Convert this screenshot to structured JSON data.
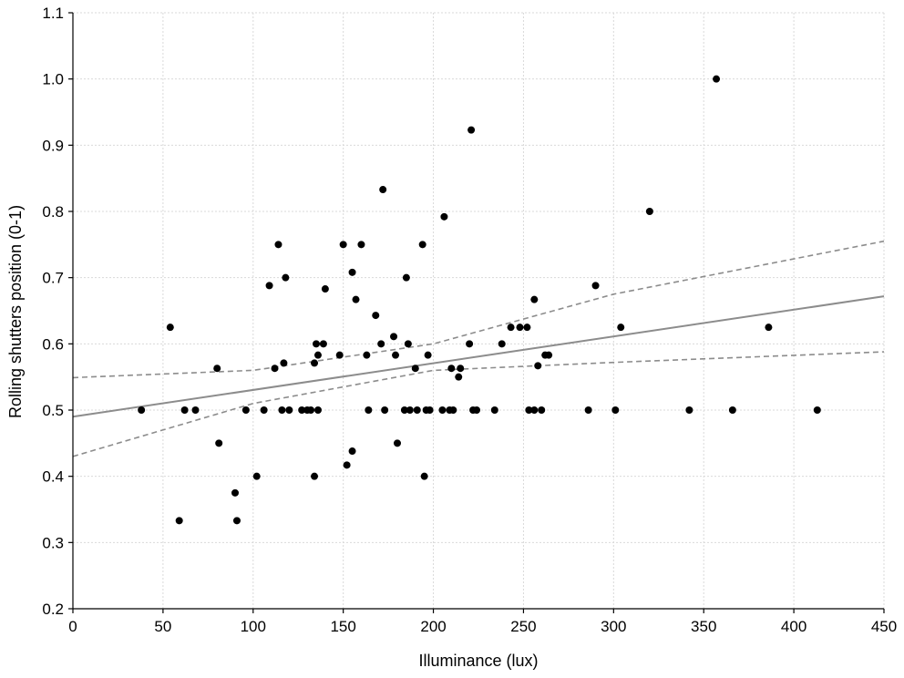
{
  "chart_data": {
    "type": "scatter",
    "title": "",
    "xlabel": "Illuminance (lux)",
    "ylabel": "Rolling shutters position (0-1)",
    "xlim": [
      0,
      450
    ],
    "ylim": [
      0.2,
      1.1
    ],
    "xticks": [
      0,
      50,
      100,
      150,
      200,
      250,
      300,
      350,
      400,
      450
    ],
    "xtick_labels": [
      "0",
      "50",
      "100",
      "150",
      "200",
      "250",
      "300",
      "350",
      "400",
      "450"
    ],
    "yticks": [
      0.2,
      0.3,
      0.4,
      0.5,
      0.6,
      0.7,
      0.8,
      0.9,
      1.0,
      1.1
    ],
    "ytick_labels": [
      "0.2",
      "0.3",
      "0.4",
      "0.5",
      "0.6",
      "0.7",
      "0.8",
      "0.9",
      "1.0",
      "1.1"
    ],
    "grid": true,
    "legend": "none",
    "point_color": "#000000",
    "line_color": "#8c8c8c",
    "points": [
      [
        38,
        0.5
      ],
      [
        54,
        0.625
      ],
      [
        59,
        0.333
      ],
      [
        62,
        0.5
      ],
      [
        68,
        0.5
      ],
      [
        80,
        0.563
      ],
      [
        81,
        0.45
      ],
      [
        90,
        0.375
      ],
      [
        91,
        0.333
      ],
      [
        96,
        0.5
      ],
      [
        102,
        0.4
      ],
      [
        106,
        0.5
      ],
      [
        109,
        0.688
      ],
      [
        112,
        0.563
      ],
      [
        114,
        0.75
      ],
      [
        116,
        0.5
      ],
      [
        117,
        0.571
      ],
      [
        118,
        0.7
      ],
      [
        120,
        0.5
      ],
      [
        127,
        0.5
      ],
      [
        130,
        0.5
      ],
      [
        132,
        0.5
      ],
      [
        134,
        0.571
      ],
      [
        134,
        0.4
      ],
      [
        135,
        0.6
      ],
      [
        136,
        0.583
      ],
      [
        136,
        0.5
      ],
      [
        139,
        0.6
      ],
      [
        140,
        0.683
      ],
      [
        148,
        0.583
      ],
      [
        150,
        0.75
      ],
      [
        152,
        0.417
      ],
      [
        155,
        0.438
      ],
      [
        155,
        0.708
      ],
      [
        157,
        0.667
      ],
      [
        160,
        0.75
      ],
      [
        163,
        0.583
      ],
      [
        164,
        0.5
      ],
      [
        168,
        0.643
      ],
      [
        171,
        0.6
      ],
      [
        172,
        0.833
      ],
      [
        173,
        0.5
      ],
      [
        178,
        0.611
      ],
      [
        179,
        0.583
      ],
      [
        180,
        0.45
      ],
      [
        184,
        0.5
      ],
      [
        185,
        0.7
      ],
      [
        186,
        0.6
      ],
      [
        187,
        0.5
      ],
      [
        190,
        0.563
      ],
      [
        191,
        0.5
      ],
      [
        194,
        0.75
      ],
      [
        195,
        0.4
      ],
      [
        196,
        0.5
      ],
      [
        197,
        0.583
      ],
      [
        198,
        0.5
      ],
      [
        205,
        0.5
      ],
      [
        206,
        0.792
      ],
      [
        209,
        0.5
      ],
      [
        210,
        0.563
      ],
      [
        211,
        0.5
      ],
      [
        214,
        0.55
      ],
      [
        215,
        0.563
      ],
      [
        220,
        0.6
      ],
      [
        221,
        0.923
      ],
      [
        222,
        0.5
      ],
      [
        224,
        0.5
      ],
      [
        234,
        0.5
      ],
      [
        238,
        0.6
      ],
      [
        243,
        0.625
      ],
      [
        248,
        0.625
      ],
      [
        252,
        0.625
      ],
      [
        253,
        0.5
      ],
      [
        256,
        0.5
      ],
      [
        256,
        0.667
      ],
      [
        258,
        0.567
      ],
      [
        260,
        0.5
      ],
      [
        262,
        0.583
      ],
      [
        264,
        0.583
      ],
      [
        286,
        0.5
      ],
      [
        290,
        0.688
      ],
      [
        301,
        0.5
      ],
      [
        304,
        0.625
      ],
      [
        320,
        0.8
      ],
      [
        342,
        0.5
      ],
      [
        357,
        1.0
      ],
      [
        366,
        0.5
      ],
      [
        386,
        0.625
      ],
      [
        413,
        0.5
      ]
    ],
    "regression": {
      "intercept": 0.49,
      "slope": 0.000404
    },
    "confidence_band": {
      "upper": [
        [
          0,
          0.549
        ],
        [
          100,
          0.56
        ],
        [
          200,
          0.6
        ],
        [
          300,
          0.675
        ],
        [
          450,
          0.755
        ]
      ],
      "lower": [
        [
          0,
          0.43
        ],
        [
          100,
          0.51
        ],
        [
          200,
          0.56
        ],
        [
          300,
          0.572
        ],
        [
          450,
          0.588
        ]
      ]
    }
  }
}
